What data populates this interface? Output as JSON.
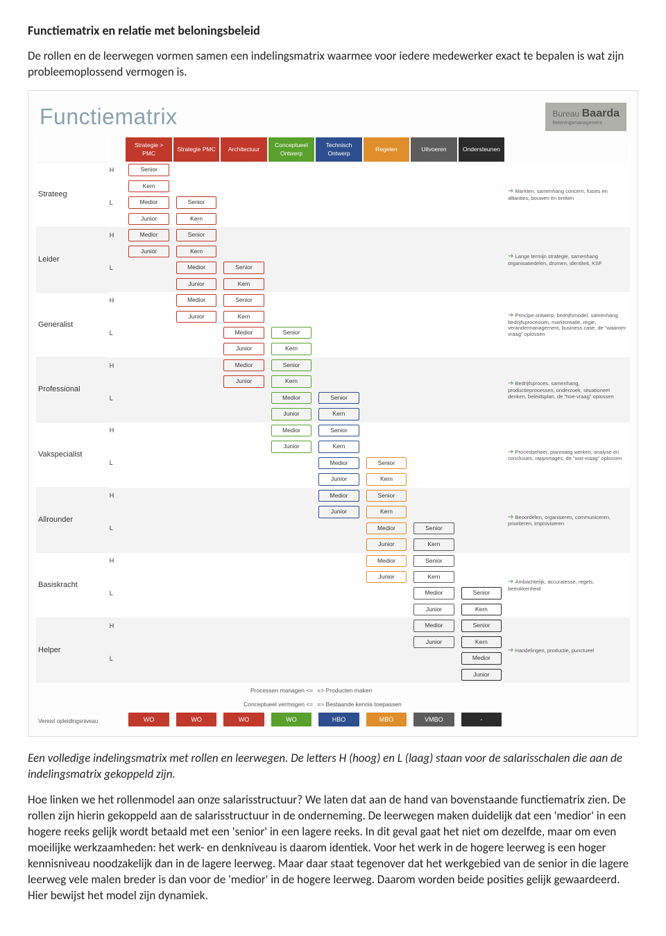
{
  "doc": {
    "title": "Functiematrix en relatie met beloningsbeleid",
    "intro": "De rollen en de leerwegen vormen samen een indelingsmatrix waarmee voor iedere medewerker exact te bepalen is wat zijn probleemoplossend vermogen is.",
    "caption": "Een volledige indelingsmatrix met rollen en leerwegen. De letters H (hoog) en L (laag) staan voor de salarisschalen die aan de indelingsmatrix gekoppeld zijn.",
    "body": "Hoe linken we het rollenmodel aan onze salarisstructuur? We laten dat aan de hand van bovenstaande functiematrix zien. De rollen zijn hierin gekoppeld aan de salarisstructuur in de onderneming. De leerwegen maken duidelijk dat een 'medior' in een hogere reeks gelijk wordt betaald met een 'senior' in een lagere reeks. In dit geval gaat het niet om dezelfde, maar om even moeilijke werkzaamheden: het werk- en denkniveau is daarom identiek. Voor het werk in de hogere leerweg is een hoger kennisniveau noodzakelijk dan in de lagere leerweg. Maar daar staat tegenover dat het werkgebied van de senior in die lagere leerweg vele malen breder is dan voor de 'medior' in de hogere leerweg. Daarom worden beide posities gelijk gewaardeerd. Hier bewijst het model zijn dynamiek."
  },
  "figure": {
    "title": "Functiematrix",
    "bureau": {
      "l1": "Bureau",
      "l2": "Baarda",
      "l3": "Beloningsmanagement"
    },
    "columns": [
      {
        "label": "Strategie > PMC",
        "color": "#c0392b"
      },
      {
        "label": "Strategie PMC",
        "color": "#c0392b"
      },
      {
        "label": "Architectuur",
        "color": "#c0392b"
      },
      {
        "label": "Conceptueel Ontwerp",
        "color": "#5aa02c"
      },
      {
        "label": "Technisch Ontwerp",
        "color": "#2e4e8f"
      },
      {
        "label": "Regelen",
        "color": "#e08e2b"
      },
      {
        "label": "Uitvoeren",
        "color": "#5c5c5c"
      },
      {
        "label": "Ondersteunen",
        "color": "#2b2b2b"
      }
    ],
    "stage_labels": {
      "s": "Senior",
      "k": "Kern",
      "m": "Medior",
      "j": "Junior"
    },
    "roles": [
      {
        "name": "Strateeg",
        "h": "H",
        "l": "L",
        "col": 0,
        "desc": "Markten, samenhang concern, fusies en allianties, bouwen en breken"
      },
      {
        "name": "Leider",
        "h": "H",
        "l": "L",
        "col": 1,
        "desc": "Lange termijn strategie, samenhang organisatiedelen, dromen, identiteit, KSF"
      },
      {
        "name": "Generalist",
        "h": "H",
        "l": "L",
        "col": 2,
        "desc": "Principe ontwerp, bedrijfsmodel, samenhang bedrijfsprocessen, marktcreatie, regie, verandermanagement, business case, de \"waarom-vraag\" oplossen"
      },
      {
        "name": "Professional",
        "h": "H",
        "l": "L",
        "col": 3,
        "desc": "Bedrijfsproces, samenhang, productieprocessen, onderzoek, situationeel denken, beleidsplan, de \"hoe-vraag\" oplossen"
      },
      {
        "name": "Vakspecialist",
        "h": "H",
        "l": "L",
        "col": 4,
        "desc": "Procesbeheer, planmatig werken, analyse en conclusies, rapportages, de \"wat-vraag\" oplossen"
      },
      {
        "name": "Allrounder",
        "h": "H",
        "l": "L",
        "col": 5,
        "desc": "Beoordelen, organiseren, communiceren, prioriteren, improviseren"
      },
      {
        "name": "Basiskracht",
        "h": "H",
        "l": "L",
        "col": 6,
        "desc": "Ambachtelijk, accuratesse, regels, betrokkenheid"
      },
      {
        "name": "Helper",
        "h": "H",
        "l": "L",
        "col": 7,
        "desc": "Handelingen, productie, punctueel"
      }
    ],
    "axis": {
      "left1": "Processen managen <=",
      "right1": "=> Producten maken",
      "left2": "Conceptueel vermogen <=",
      "right2": "=> Bestaande kennis toepassen"
    },
    "edu_label": "Vereist opleidingsniveau",
    "edu": [
      {
        "label": "WO",
        "color": "#c0392b"
      },
      {
        "label": "WO",
        "color": "#c0392b"
      },
      {
        "label": "WO",
        "color": "#c0392b"
      },
      {
        "label": "WO",
        "color": "#5aa02c"
      },
      {
        "label": "HBO",
        "color": "#2e4e8f"
      },
      {
        "label": "MBO",
        "color": "#e08e2b"
      },
      {
        "label": "VMBO",
        "color": "#5c5c5c"
      },
      {
        "label": "-",
        "color": "#2b2b2b"
      }
    ]
  }
}
